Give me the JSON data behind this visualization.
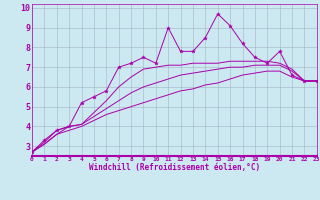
{
  "xlabel": "Windchill (Refroidissement éolien,°C)",
  "xlim": [
    0,
    23
  ],
  "ylim": [
    2.5,
    10.2
  ],
  "xticks": [
    0,
    1,
    2,
    3,
    4,
    5,
    6,
    7,
    8,
    9,
    10,
    11,
    12,
    13,
    14,
    15,
    16,
    17,
    18,
    19,
    20,
    21,
    22,
    23
  ],
  "yticks": [
    3,
    4,
    5,
    6,
    7,
    8,
    9,
    10
  ],
  "background_color": "#cce8f0",
  "line_color": "#aa00aa",
  "grid_color": "#99aabb",
  "series": [
    [
      2.7,
      3.3,
      3.8,
      4.0,
      5.2,
      5.5,
      5.8,
      7.0,
      7.2,
      7.5,
      7.2,
      9.0,
      7.8,
      7.8,
      8.5,
      9.7,
      9.1,
      8.2,
      7.5,
      7.2,
      7.8,
      6.6,
      6.3,
      6.3
    ],
    [
      2.7,
      3.1,
      3.6,
      3.8,
      4.0,
      4.3,
      4.6,
      4.8,
      5.0,
      5.2,
      5.4,
      5.6,
      5.8,
      5.9,
      6.1,
      6.2,
      6.4,
      6.6,
      6.7,
      6.8,
      6.8,
      6.5,
      6.3,
      6.3
    ],
    [
      2.7,
      3.1,
      3.6,
      4.0,
      4.1,
      4.5,
      4.9,
      5.3,
      5.7,
      6.0,
      6.2,
      6.4,
      6.6,
      6.7,
      6.8,
      6.9,
      7.0,
      7.0,
      7.1,
      7.1,
      7.1,
      6.8,
      6.3,
      6.3
    ],
    [
      2.7,
      3.2,
      3.8,
      4.0,
      4.1,
      4.7,
      5.3,
      6.0,
      6.5,
      6.9,
      7.0,
      7.1,
      7.1,
      7.2,
      7.2,
      7.2,
      7.3,
      7.3,
      7.3,
      7.3,
      7.2,
      6.9,
      6.3,
      6.3
    ]
  ],
  "xlabel_fontsize": 5.5,
  "xtick_fontsize": 4.5,
  "ytick_fontsize": 6.0
}
